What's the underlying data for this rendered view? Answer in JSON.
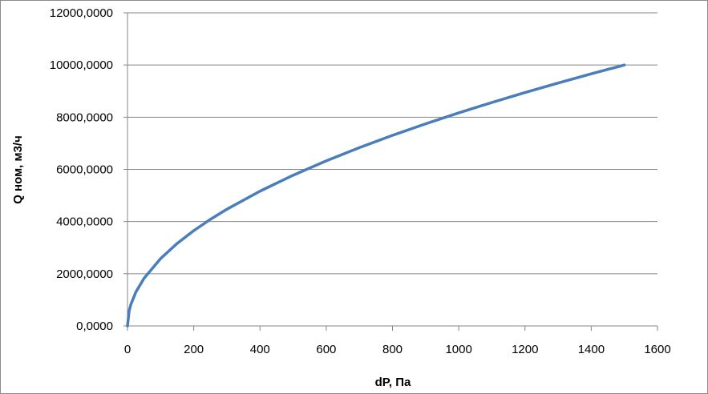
{
  "chart_data": {
    "type": "line",
    "title": "",
    "xlabel": "dP, Па",
    "ylabel": "Q ном, м3/ч",
    "xlim": [
      0,
      1600
    ],
    "ylim": [
      0,
      12000
    ],
    "x_ticks": [
      "0",
      "200",
      "400",
      "600",
      "800",
      "1000",
      "1200",
      "1400",
      "1600"
    ],
    "y_ticks": [
      "0,0000",
      "2000,0000",
      "4000,0000",
      "6000,0000",
      "8000,0000",
      "10000,0000",
      "12000,0000"
    ],
    "grid": "horizontal",
    "legend": "none",
    "series": [
      {
        "color": "#4a7ebb",
        "x": [
          0,
          5,
          10,
          25,
          50,
          100,
          150,
          200,
          250,
          300,
          400,
          500,
          600,
          700,
          800,
          900,
          1000,
          1100,
          1200,
          1300,
          1400,
          1500
        ],
        "y": [
          0,
          577,
          816,
          1291,
          1826,
          2582,
          3162,
          3651,
          4082,
          4472,
          5164,
          5774,
          6325,
          6831,
          7303,
          7746,
          8165,
          8563,
          8944,
          9309,
          9661,
          10000
        ]
      }
    ]
  }
}
